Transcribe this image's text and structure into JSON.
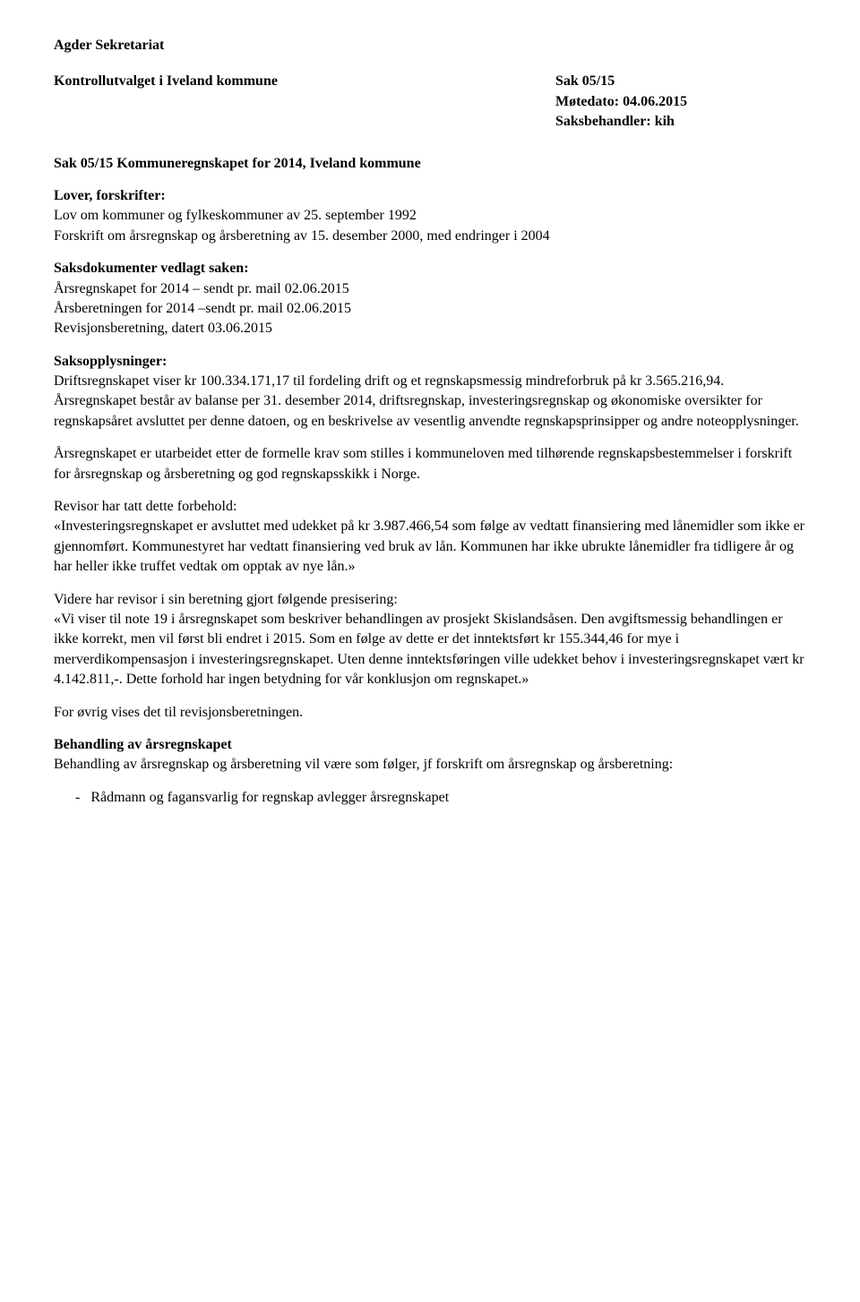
{
  "header": {
    "org": "Agder Sekretariat",
    "committee": "Kontrollutvalget i Iveland kommune",
    "case_no": "Sak 05/15",
    "meeting_date": "Møtedato: 04.06.2015",
    "handler": "Saksbehandler: kih"
  },
  "case_title": "Sak 05/15 Kommuneregnskapet for 2014, Iveland kommune",
  "laws": {
    "heading": "Lover, forskrifter:",
    "line1": "Lov om kommuner og fylkeskommuner av 25. september 1992",
    "line2": "Forskrift om årsregnskap og årsberetning av 15. desember 2000, med endringer i 2004"
  },
  "attachments": {
    "heading": "Saksdokumenter vedlagt saken:",
    "line1": "Årsregnskapet for 2014 – sendt pr. mail 02.06.2015",
    "line2": "Årsberetningen for 2014 –sendt pr. mail 02.06.2015",
    "line3": "Revisjonsberetning, datert 03.06.2015"
  },
  "info": {
    "heading": "Saksopplysninger:",
    "p1": "Driftsregnskapet viser kr 100.334.171,17 til fordeling drift og et regnskapsmessig mindreforbruk på kr 3.565.216,94. Årsregnskapet består av balanse per 31. desember 2014, driftsregnskap, investeringsregnskap og økonomiske oversikter for regnskapsåret avsluttet per denne datoen, og en beskrivelse av vesentlig anvendte regnskapsprinsipper og andre noteopplysninger.",
    "p2": "Årsregnskapet er utarbeidet etter de formelle krav som stilles i kommuneloven med tilhørende regnskapsbestemmelser i forskrift for årsregnskap og årsberetning og god regnskapsskikk i Norge.",
    "p3_intro": "Revisor har tatt dette forbehold:",
    "p3_quote": "«Investeringsregnskapet er avsluttet med udekket på kr 3.987.466,54 som følge av vedtatt finansiering med lånemidler som ikke er gjennomført. Kommunestyret har vedtatt finansiering ved bruk av lån. Kommunen har ikke ubrukte lånemidler fra tidligere år og har heller ikke truffet vedtak om opptak av nye lån.»",
    "p4_intro": "Videre har revisor i sin beretning gjort følgende presisering:",
    "p4_quote": "«Vi viser til note 19 i årsregnskapet som beskriver behandlingen av prosjekt Skislandsåsen. Den avgiftsmessig behandlingen er ikke korrekt, men vil først bli endret i 2015. Som en følge av dette er det inntektsført kr 155.344,46 for mye i merverdikompensasjon i investeringsregnskapet. Uten denne inntektsføringen ville udekket behov i investeringsregnskapet vært kr 4.142.811,-. Dette forhold har ingen betydning for vår konklusjon om regnskapet.»",
    "p5": "For øvrig vises det til revisjonsberetningen."
  },
  "treatment": {
    "heading": "Behandling av årsregnskapet",
    "p1": "Behandling av årsregnskap og årsberetning vil være som følger, jf forskrift om årsregnskap og årsberetning:",
    "bullet_dash": "-",
    "bullet1": "Rådmann og fagansvarlig for regnskap avlegger årsregnskapet"
  }
}
